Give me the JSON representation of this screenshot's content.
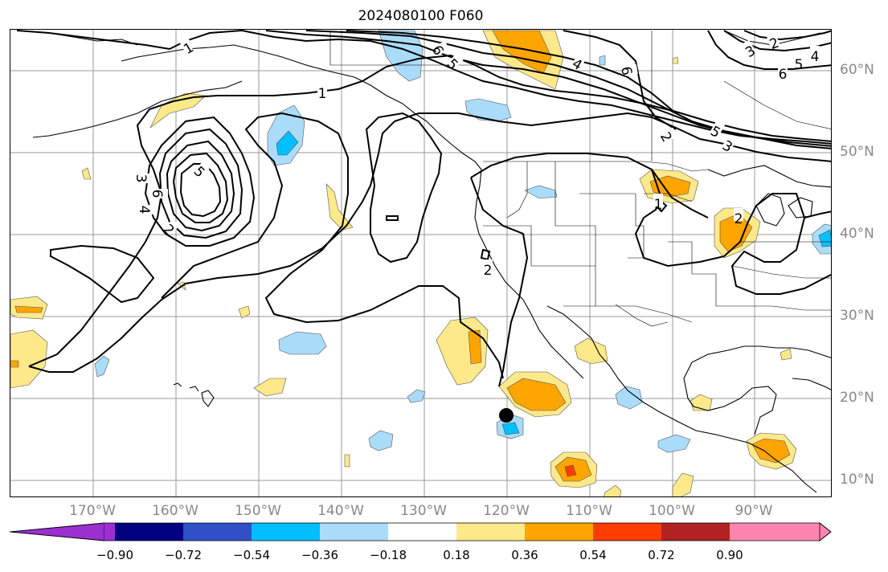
{
  "title": "2024080100 F060",
  "lon_labels": [
    "170°W",
    "160°W",
    "150°W",
    "140°W",
    "130°W",
    "120°W",
    "110°W",
    "100°W",
    "90°W"
  ],
  "lat_labels": [
    "60°N",
    "50°N",
    "40°N",
    "30°N",
    "20°N",
    "10°N"
  ],
  "contour_labels": [
    "1",
    "1",
    "6",
    "5",
    "4",
    "6",
    "3",
    "2",
    "5",
    "4",
    "6",
    "1",
    "2",
    "5",
    "3",
    "3",
    "6",
    "5",
    "4",
    "2",
    "2",
    "2"
  ],
  "colorbar": {
    "labels": [
      "−0.90",
      "−0.72",
      "−0.54",
      "−0.36",
      "−0.18",
      "0.18",
      "0.36",
      "0.54",
      "0.72",
      "0.90"
    ],
    "colors": [
      "#9b30d0",
      "#000080",
      "#3050c8",
      "#00bfff",
      "#aadcfa",
      "#ffffff",
      "#fde98a",
      "#ffa500",
      "#ff3c00",
      "#b22222",
      "#ff85b0"
    ],
    "extend": "both"
  },
  "grid": true,
  "marker": "black-dot"
}
